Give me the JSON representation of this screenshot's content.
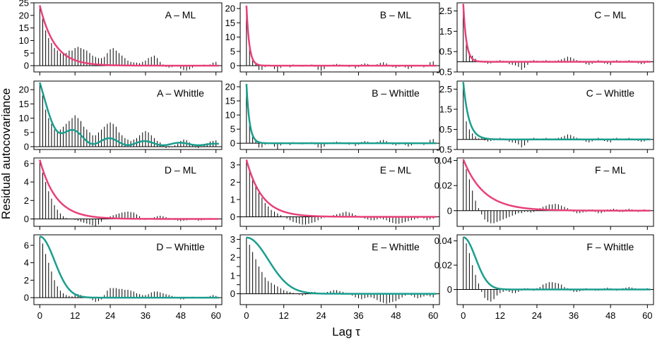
{
  "figure": {
    "ylabel": "Residual autocovariance",
    "xlabel": "Lag τ",
    "colors": {
      "ml": "#e8417a",
      "whittle": "#1a9e8f",
      "bars": "#000000",
      "frame": "#000000"
    }
  },
  "chart_data": [
    {
      "id": "A-ML",
      "title": "A – ML",
      "type": "bar+line",
      "fit": "ml",
      "xlim": [
        -2,
        62
      ],
      "ylim": [
        -2.5,
        25
      ],
      "yticks": [
        0,
        5,
        10,
        15,
        20,
        25
      ],
      "xticks": [
        0,
        12,
        24,
        36,
        48,
        60
      ],
      "xlabels_visible": false,
      "curve": {
        "kind": "exp",
        "a0": 24,
        "decay": 0.2
      },
      "bars": [
        24,
        19,
        14,
        11,
        9,
        7,
        6,
        5,
        5,
        5,
        6,
        6,
        7,
        7.5,
        7,
        6.5,
        6,
        5,
        4,
        3.5,
        3,
        3,
        3.5,
        5,
        6.5,
        7,
        6,
        5,
        4,
        3,
        2,
        1.5,
        1.3,
        1.2,
        1,
        1.5,
        2,
        3,
        3.5,
        4,
        3,
        1.5,
        0.5,
        -0.5,
        -0.8,
        -0.6,
        -0.3,
        -0.4,
        -1.2,
        -1.8,
        -2,
        -1.5,
        -0.8,
        -0.3,
        0,
        0.3,
        0.4,
        0.2,
        0.5,
        1.2,
        1.5
      ]
    },
    {
      "id": "B-ML",
      "title": "B – ML",
      "type": "bar+line",
      "fit": "ml",
      "xlim": [
        -2,
        62
      ],
      "ylim": [
        -2.2,
        22
      ],
      "yticks": [
        0,
        5,
        10,
        15,
        20
      ],
      "xticks": [
        0,
        12,
        24,
        36,
        48,
        60
      ],
      "xlabels_visible": false,
      "curve": {
        "kind": "exp",
        "a0": 21,
        "decay": 1.1
      },
      "bars": [
        21,
        7,
        2.5,
        1,
        -1.5,
        -1.5,
        -0.5,
        0.2,
        0.2,
        -1.2,
        -2.2,
        -0.8,
        0.3,
        0.2,
        -0.6,
        0.4,
        0.2,
        -0.3,
        -0.4,
        0.3,
        0.2,
        0.4,
        -0.4,
        -1.5,
        -1.8,
        -1.2,
        -0.3,
        0.2,
        0.4,
        0.6,
        0.4,
        0.3,
        -0.3,
        -0.5,
        -0.2,
        -1,
        -0.5,
        0.5,
        0.8,
        0.6,
        0.2,
        -0.2,
        0.5,
        1,
        1.2,
        0.8,
        0.3,
        -0.5,
        -0.8,
        -0.4,
        -0.2,
        -0.6,
        -1.2,
        -0.8,
        -0.3,
        0.2,
        -0.2,
        -0.6,
        -0.3,
        1.2,
        1.5
      ]
    },
    {
      "id": "C-ML",
      "title": "C – ML",
      "type": "bar+line",
      "fit": "ml",
      "xlim": [
        -2,
        62
      ],
      "ylim": [
        -0.5,
        2.9
      ],
      "yticks": [
        -0.5,
        0.5,
        1.5,
        2.5
      ],
      "xticks": [
        0,
        12,
        24,
        36,
        48,
        60
      ],
      "xlabels_visible": false,
      "curve": {
        "kind": "exp",
        "a0": 2.85,
        "decay": 1.0
      },
      "bars": [
        2.85,
        0.9,
        0.5,
        0.3,
        0.15,
        0.05,
        0.05,
        -0.05,
        -0.1,
        -0.08,
        -0.05,
        0.05,
        0.08,
        0.05,
        -0.05,
        -0.12,
        -0.15,
        -0.18,
        -0.25,
        -0.4,
        -0.3,
        -0.15,
        0.05,
        0.08,
        0.05,
        0.02,
        0.05,
        0.08,
        0.05,
        0.03,
        0.05,
        0.08,
        0.12,
        0.18,
        0.25,
        0.22,
        0.15,
        0.08,
        0.05,
        -0.05,
        -0.12,
        -0.15,
        -0.1,
        -0.05,
        0.08,
        0.05,
        -0.08,
        -0.12,
        -0.15,
        0.05,
        0.08,
        0.05,
        0.03,
        0.05,
        0.08,
        0.05,
        -0.05,
        -0.08,
        -0.12,
        -0.1,
        0.05
      ]
    },
    {
      "id": "A-Whittle",
      "title": "A – Whittle",
      "type": "bar+line",
      "fit": "whittle",
      "xlim": [
        -2,
        62
      ],
      "ylim": [
        -1,
        23
      ],
      "yticks": [
        0,
        5,
        10,
        15,
        20
      ],
      "xticks": [
        0,
        12,
        24,
        36,
        48,
        60
      ],
      "xlabels_visible": false,
      "curve": {
        "kind": "oscillating",
        "a0": 22.5,
        "decay": 0.2,
        "amp": 12,
        "period": 12,
        "damp": 0.04,
        "offset": 0.5
      },
      "bars": [
        22,
        18,
        13,
        10,
        8,
        6,
        5,
        6,
        7,
        8,
        9,
        10,
        11,
        10,
        9,
        7,
        6,
        5,
        4,
        4,
        5,
        6,
        7,
        8,
        8.5,
        8,
        7,
        5,
        4,
        3,
        2.5,
        2,
        2.5,
        3,
        4,
        5,
        5.5,
        5,
        4,
        3,
        2,
        1.5,
        0.5,
        -0.5,
        -0.3,
        -0.2,
        0.5,
        1,
        2,
        2.5,
        2.3,
        1.5,
        0.5,
        -0.3,
        -0.5,
        -0.2,
        0.5,
        1.2,
        1.8,
        2,
        2.2
      ]
    },
    {
      "id": "B-Whittle",
      "title": "B – Whittle",
      "type": "bar+line",
      "fit": "whittle",
      "xlim": [
        -2,
        62
      ],
      "ylim": [
        -2.2,
        22
      ],
      "yticks": [
        0,
        5,
        10,
        15,
        20
      ],
      "xticks": [
        0,
        12,
        24,
        36,
        48,
        60
      ],
      "xlabels_visible": false,
      "curve": {
        "kind": "exp",
        "a0": 21,
        "decay": 1.0
      },
      "bars": [
        21,
        7,
        2.5,
        1,
        -1.5,
        -1.5,
        -0.5,
        0.2,
        0.2,
        -1.2,
        -2.2,
        -0.8,
        0.3,
        0.2,
        -0.6,
        0.4,
        0.2,
        -0.3,
        -0.4,
        0.3,
        0.2,
        0.4,
        -0.4,
        -1.5,
        -1.8,
        -1.2,
        -0.3,
        0.2,
        0.4,
        0.6,
        0.4,
        0.3,
        -0.3,
        -0.5,
        -0.2,
        -1,
        -0.5,
        0.5,
        0.8,
        0.6,
        0.2,
        -0.2,
        0.5,
        1,
        1.2,
        0.8,
        0.3,
        -0.5,
        -0.8,
        -0.4,
        -0.2,
        -0.6,
        -1.2,
        -0.8,
        -0.3,
        0.2,
        -0.2,
        -0.6,
        -0.3,
        1.2,
        1.5
      ]
    },
    {
      "id": "C-Whittle",
      "title": "C – Whittle",
      "type": "bar+line",
      "fit": "whittle",
      "xlim": [
        -2,
        62
      ],
      "ylim": [
        -0.5,
        2.9
      ],
      "yticks": [
        -0.5,
        0.5,
        1.5,
        2.5
      ],
      "xticks": [
        0,
        12,
        24,
        36,
        48,
        60
      ],
      "xlabels_visible": false,
      "curve": {
        "kind": "exp",
        "a0": 2.85,
        "decay": 0.55
      },
      "bars": [
        2.85,
        0.9,
        0.5,
        0.3,
        0.15,
        0.05,
        0.05,
        -0.05,
        -0.1,
        -0.08,
        -0.05,
        0.05,
        0.08,
        0.05,
        -0.05,
        -0.12,
        -0.15,
        -0.18,
        -0.25,
        -0.4,
        -0.3,
        -0.15,
        0.05,
        0.08,
        0.05,
        0.02,
        0.05,
        0.08,
        0.05,
        0.03,
        0.05,
        0.08,
        0.12,
        0.18,
        0.25,
        0.22,
        0.15,
        0.08,
        0.05,
        -0.05,
        -0.12,
        -0.15,
        -0.1,
        -0.05,
        0.08,
        0.05,
        -0.08,
        -0.12,
        -0.15,
        0.05,
        0.08,
        0.05,
        0.03,
        0.05,
        0.08,
        0.05,
        -0.05,
        -0.08,
        -0.12,
        -0.1,
        0.05
      ]
    },
    {
      "id": "D-ML",
      "title": "D – ML",
      "type": "bar+line",
      "fit": "ml",
      "xlim": [
        -2,
        62
      ],
      "ylim": [
        -0.8,
        6.6
      ],
      "yticks": [
        0,
        2,
        4,
        6
      ],
      "xticks": [
        0,
        12,
        24,
        36,
        48,
        60
      ],
      "xlabels_visible": false,
      "curve": {
        "kind": "exp",
        "a0": 6.4,
        "decay": 0.18
      },
      "bars": [
        6.4,
        5,
        4,
        3,
        2.2,
        1.5,
        1,
        0.6,
        0.3,
        0.1,
        0.05,
        -0.05,
        -0.1,
        -0.2,
        -0.3,
        -0.4,
        -0.5,
        -0.6,
        -0.7,
        -0.8,
        -0.6,
        -0.3,
        0.05,
        0.2,
        0.3,
        0.4,
        0.5,
        0.6,
        0.7,
        0.75,
        0.8,
        0.75,
        0.7,
        0.5,
        0.3,
        0.1,
        -0.1,
        -0.05,
        0.1,
        0.2,
        0.3,
        0.35,
        0.3,
        0.2,
        0.1,
        -0.05,
        -0.1,
        -0.2,
        -0.25,
        -0.2,
        -0.15,
        -0.1,
        -0.05,
        -0.1,
        -0.2,
        -0.15,
        -0.1,
        -0.05,
        0.1,
        0.05,
        0.02
      ]
    },
    {
      "id": "E-ML",
      "title": "E – ML",
      "type": "bar+line",
      "fit": "ml",
      "xlim": [
        -2,
        62
      ],
      "ylim": [
        -0.55,
        3.4
      ],
      "yticks": [
        0,
        1,
        2,
        3
      ],
      "xticks": [
        0,
        12,
        24,
        36,
        48,
        60
      ],
      "xlabels_visible": false,
      "curve": {
        "kind": "exp",
        "a0": 3.3,
        "decay": 0.2
      },
      "bars": [
        3.3,
        2.7,
        2.2,
        1.8,
        1.4,
        1.1,
        0.8,
        0.6,
        0.4,
        0.3,
        0.2,
        0.1,
        0.02,
        -0.1,
        -0.2,
        -0.3,
        -0.35,
        -0.4,
        -0.45,
        -0.45,
        -0.4,
        -0.35,
        -0.3,
        -0.2,
        -0.1,
        -0.05,
        0.02,
        0.05,
        0.1,
        0.15,
        0.2,
        0.25,
        0.3,
        0.25,
        0.2,
        0.1,
        0.02,
        -0.05,
        -0.1,
        -0.15,
        -0.2,
        -0.2,
        -0.15,
        -0.1,
        -0.15,
        -0.2,
        -0.3,
        -0.35,
        -0.4,
        -0.4,
        -0.35,
        -0.3,
        -0.25,
        -0.2,
        -0.15,
        -0.1,
        -0.05,
        -0.1,
        -0.2,
        -0.15,
        -0.1
      ]
    },
    {
      "id": "F-ML",
      "title": "F – ML",
      "type": "bar+line",
      "fit": "ml",
      "xlim": [
        -2,
        62
      ],
      "ylim": [
        -0.0125,
        0.042
      ],
      "yticks": [
        0,
        0.02,
        0.04
      ],
      "xticks": [
        0,
        12,
        24,
        36,
        48,
        60
      ],
      "xlabels_visible": false,
      "curve": {
        "kind": "exp",
        "a0": 0.041,
        "decay": 0.15
      },
      "bars": [
        0.041,
        0.033,
        0.025,
        0.016,
        0.008,
        0.002,
        -0.003,
        -0.007,
        -0.009,
        -0.01,
        -0.01,
        -0.009,
        -0.008,
        -0.007,
        -0.006,
        -0.005,
        -0.004,
        -0.003,
        -0.002,
        -0.002,
        -0.001,
        -0.001,
        -0.0015,
        -0.001,
        0.001,
        0.002,
        0.003,
        0.004,
        0.005,
        0.005,
        0.0055,
        0.005,
        0.004,
        0.003,
        0.002,
        0.001,
        -0.001,
        -0.002,
        -0.002,
        -0.0015,
        -0.001,
        0.001,
        0.001,
        -0.001,
        -0.002,
        -0.002,
        -0.001,
        0.001,
        0.001,
        0.0015,
        0.001,
        -0.001,
        -0.001,
        0.001,
        0.0015,
        0.001,
        -0.0005,
        -0.001,
        0.0005,
        0.001,
        0.0005
      ]
    },
    {
      "id": "D-Whittle",
      "title": "D – Whittle",
      "type": "bar+line",
      "fit": "whittle",
      "xlim": [
        -2,
        62
      ],
      "ylim": [
        -0.8,
        7.2
      ],
      "yticks": [
        0,
        2,
        4,
        6
      ],
      "xticks": [
        0,
        12,
        24,
        36,
        48,
        60
      ],
      "xlabels_visible": true,
      "curve": {
        "kind": "gaussian",
        "a0": 7,
        "scale": 5
      },
      "bars": [
        7,
        6.2,
        5,
        4,
        3,
        2,
        1.3,
        0.8,
        0.5,
        0.3,
        0.2,
        0.15,
        0.3,
        0.4,
        0.3,
        0.2,
        0.1,
        -0.1,
        -0.3,
        -0.5,
        -0.4,
        -0.2,
        0.3,
        0.8,
        1.1,
        1.1,
        1.1,
        1,
        1,
        0.9,
        0.9,
        0.8,
        0.7,
        0.5,
        0.4,
        0.3,
        0.3,
        0.4,
        0.6,
        0.7,
        0.7,
        0.6,
        0.5,
        0.4,
        0.3,
        0.2,
        0.1,
        -0.1,
        -0.2,
        -0.2,
        -0.1,
        0.05,
        0.1,
        0.05,
        -0.05,
        -0.1,
        -0.1,
        0.1,
        0.2,
        0.3,
        0.2
      ]
    },
    {
      "id": "E-Whittle",
      "title": "E – Whittle",
      "type": "bar+line",
      "fit": "whittle",
      "xlim": [
        -2,
        62
      ],
      "ylim": [
        -0.6,
        3.25
      ],
      "yticks": [
        0,
        0.5,
        1,
        1.5,
        2,
        2.5,
        3
      ],
      "yticklabels": [
        "0",
        "",
        "1",
        "",
        "2",
        "",
        "3"
      ],
      "xticks": [
        0,
        12,
        24,
        36,
        48,
        60
      ],
      "xlabels_visible": true,
      "curve": {
        "kind": "gaussian",
        "a0": 3.1,
        "scale": 7
      },
      "bars": [
        3.1,
        2.7,
        2.3,
        1.9,
        1.5,
        1.2,
        0.9,
        0.7,
        0.6,
        0.5,
        0.4,
        0.3,
        0.2,
        0.15,
        0.1,
        0.05,
        0.02,
        -0.05,
        -0.1,
        -0.05,
        0.05,
        0.1,
        0.1,
        0.05,
        0.02,
        0.05,
        0.1,
        0.15,
        0.2,
        0.2,
        0.15,
        0.1,
        0.05,
        -0.05,
        -0.1,
        -0.2,
        -0.25,
        -0.3,
        -0.25,
        -0.2,
        -0.2,
        -0.25,
        -0.35,
        -0.45,
        -0.5,
        -0.55,
        -0.5,
        -0.45,
        -0.4,
        -0.3,
        -0.2,
        -0.1,
        -0.05,
        -0.1,
        -0.2,
        -0.25,
        -0.2,
        -0.15,
        -0.1,
        -0.15,
        -0.2
      ]
    },
    {
      "id": "F-Whittle",
      "title": "F – Whittle",
      "type": "bar+line",
      "fit": "whittle",
      "xlim": [
        -2,
        62
      ],
      "ylim": [
        -0.0125,
        0.045
      ],
      "yticks": [
        0,
        0.02,
        0.04
      ],
      "xticks": [
        0,
        12,
        24,
        36,
        48,
        60
      ],
      "xlabels_visible": true,
      "curve": {
        "kind": "gaussian",
        "a0": 0.043,
        "scale": 4
      },
      "bars": [
        0.043,
        0.038,
        0.03,
        0.02,
        0.012,
        0.005,
        -0.002,
        -0.007,
        -0.009,
        -0.01,
        -0.008,
        -0.005,
        -0.003,
        -0.002,
        -0.001,
        -0.002,
        -0.003,
        -0.003,
        -0.002,
        -0.001,
        0.001,
        0.001,
        0.0005,
        -0.001,
        0.001,
        0.002,
        0.004,
        0.005,
        0.006,
        0.006,
        0.0055,
        0.005,
        0.004,
        0.002,
        0.001,
        -0.001,
        -0.002,
        -0.002,
        -0.0015,
        -0.001,
        0.001,
        0.0005,
        -0.0005,
        -0.001,
        -0.001,
        0.0005,
        0.001,
        0.0015,
        0.001,
        -0.0005,
        -0.001,
        -0.0005,
        0.001,
        0.0015,
        0.002,
        0.0015,
        0.001,
        0.0005,
        -0.0005,
        0.0005,
        0.001
      ]
    }
  ]
}
